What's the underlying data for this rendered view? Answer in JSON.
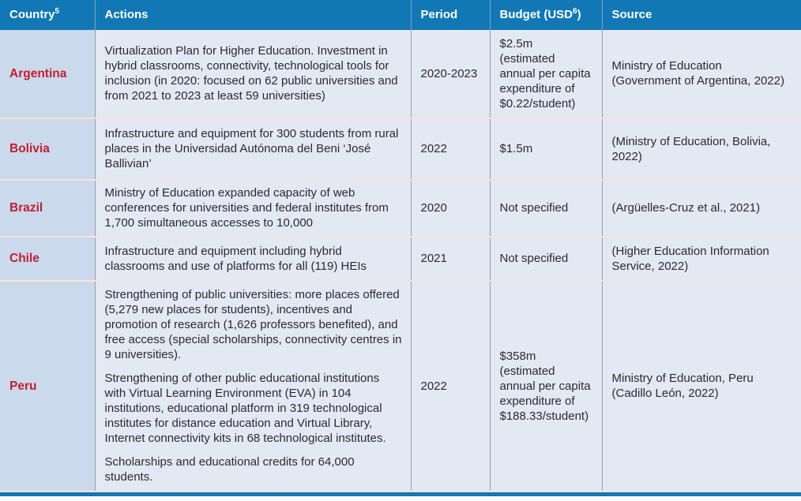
{
  "header": {
    "country": {
      "text": "Country",
      "sup": "5"
    },
    "actions": {
      "text": "Actions"
    },
    "period": {
      "text": "Period"
    },
    "budget": {
      "text": "Budget (USD",
      "sup": "6",
      "suffix": ")"
    },
    "source": {
      "text": "Source"
    }
  },
  "rows": [
    {
      "country": "Argentina",
      "actions": [
        "Virtualization Plan for Higher Education. Investment in hybrid classrooms, connectivity, technological tools for inclusion (in 2020: focused on 62 public universities and from 2021 to 2023 at least 59 universities)"
      ],
      "period": "2020-2023",
      "budget": [
        "$2.5m",
        "(estimated annual per capita expenditure of $0.22/student)"
      ],
      "source": "Ministry of Education (Government of Argentina, 2022)"
    },
    {
      "country": "Bolivia",
      "actions": [
        "Infrastructure and equipment for 300 students from rural places in the Universidad Autónoma del Beni ‘José Ballivian’"
      ],
      "period": "2022",
      "budget": [
        "$1.5m"
      ],
      "source": "(Ministry of Education, Bolivia, 2022)"
    },
    {
      "country": "Brazil",
      "actions": [
        "Ministry of Education expanded capacity of web conferences for universities and federal institutes from 1,700 simultaneous accesses to 10,000"
      ],
      "period": "2020",
      "budget": [
        "Not specified"
      ],
      "source": "(Argüelles-Cruz et al., 2021)"
    },
    {
      "country": "Chile",
      "actions": [
        "Infrastructure and equipment including hybrid classrooms and use of platforms for all (119) HEIs"
      ],
      "period": "2021",
      "budget": [
        "Not specified"
      ],
      "source": "(Higher Education Information Service, 2022)"
    },
    {
      "country": "Peru",
      "actions": [
        "Strengthening of public universities: more places offered (5,279 new places for students), incentives and promotion of research (1,626 professors benefited), and free access (special scholarships, connectivity centres in 9 universities).",
        "Strengthening of other public educational institutions with Virtual Learning Environment (EVA) in 104 institutions, educational platform in 319 technological institutes for distance education and Virtual Library, Internet connectivity kits in 68 technological institutes.",
        "Scholarships and educational credits for 64,000 students."
      ],
      "period": "2022",
      "budget": [
        "$358m",
        "(estimated annual per capita expenditure of $188.33/student)"
      ],
      "source": "Ministry of Education, Peru (Cadillo León, 2022)"
    }
  ],
  "colors": {
    "header_bg": "#1178b5",
    "country_column_bg": "#cbd9ec",
    "cell_bg": "#e3e9f4",
    "country_text": "#c01f30",
    "body_text": "#2b2a2e",
    "row_divider": "#f8e2da",
    "column_divider": "#989ea6",
    "bottom_bar": "#1178b5"
  }
}
